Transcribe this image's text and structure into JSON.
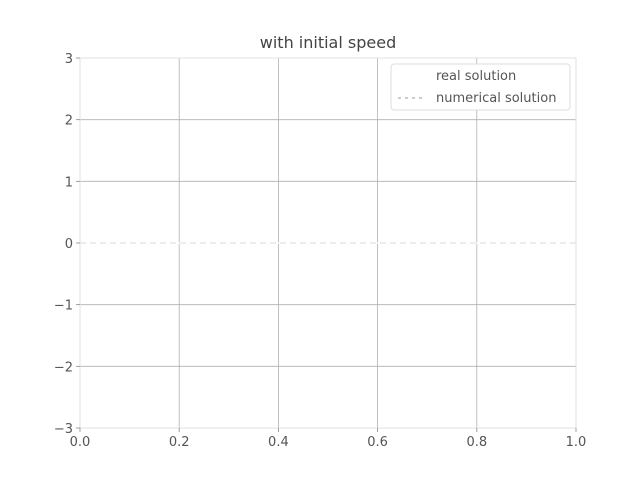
{
  "chart_data": {
    "type": "line",
    "title": "with initial speed",
    "xlabel": "",
    "ylabel": "",
    "xlim": [
      0.0,
      1.0
    ],
    "ylim": [
      -3,
      3
    ],
    "x_ticks": [
      "0.0",
      "0.2",
      "0.4",
      "0.6",
      "0.8",
      "1.0"
    ],
    "y_ticks": [
      "−3",
      "−2",
      "−1",
      "0",
      "1",
      "2",
      "3"
    ],
    "grid": true,
    "legend_position": "top-right",
    "series": [
      {
        "name": "real solution",
        "style": "solid",
        "color": "#ffffff",
        "x": [
          0.0,
          1.0
        ],
        "y": [
          0.0,
          0.0
        ]
      },
      {
        "name": "numerical solution",
        "style": "dashed",
        "color": "#e6e6e6",
        "x": [
          0.0,
          1.0
        ],
        "y": [
          0.0,
          0.0
        ]
      }
    ]
  }
}
